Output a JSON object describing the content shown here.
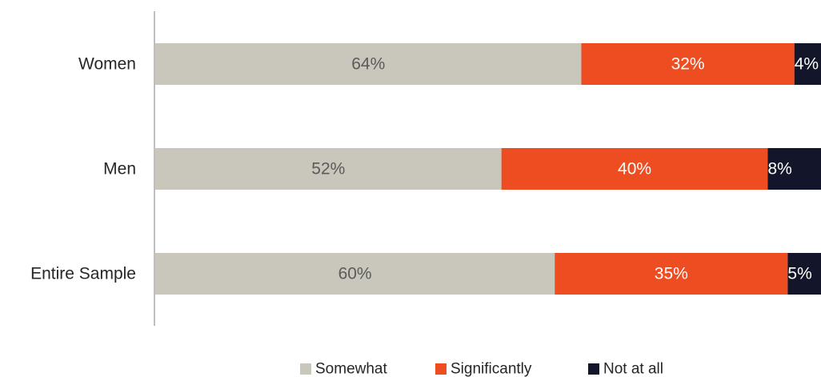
{
  "chart_data": {
    "type": "bar",
    "orientation": "horizontal",
    "stacked": true,
    "categories": [
      "Women",
      "Men",
      "Entire Sample"
    ],
    "series": [
      {
        "name": "Somewhat",
        "values": [
          64,
          52,
          60
        ],
        "labels": [
          "64%",
          "52%",
          "60%"
        ],
        "color": "#c9c6bb",
        "label_color": "#5b5b5b"
      },
      {
        "name": "Significantly",
        "values": [
          32,
          40,
          35
        ],
        "labels": [
          "32%",
          "40%",
          "35%"
        ],
        "color": "#ee4d22",
        "label_color": "#ffffff"
      },
      {
        "name": "Not at all",
        "values": [
          4,
          8,
          5
        ],
        "labels": [
          "4%",
          "8%",
          "5%"
        ],
        "color": "#13152a",
        "label_color": "#ffffff"
      }
    ],
    "xlim": [
      0,
      100
    ],
    "grid": false,
    "legend_position": "bottom-center"
  }
}
